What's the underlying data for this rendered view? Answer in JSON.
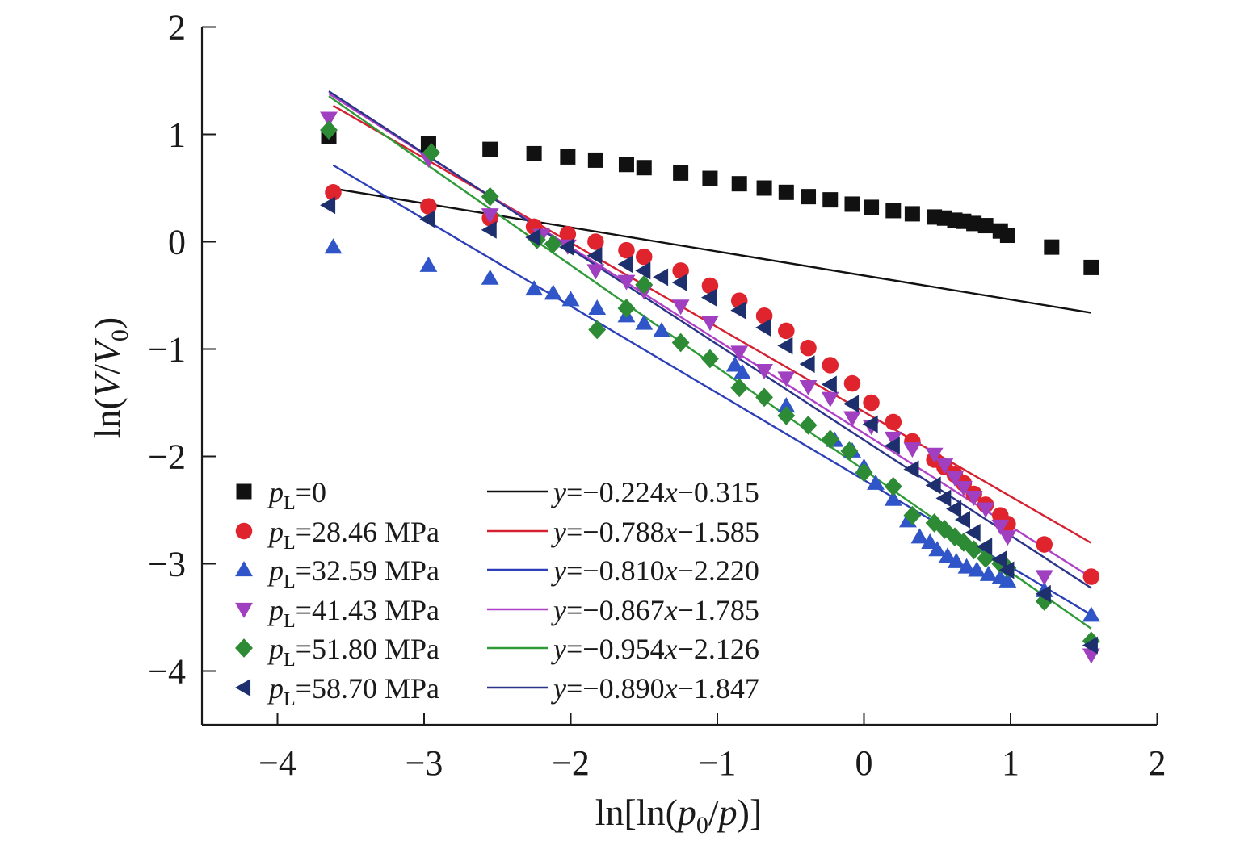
{
  "chart_data": {
    "type": "scatter",
    "title": "",
    "xlabel_parts": [
      "ln[ln(",
      "p",
      "0",
      "/",
      "p",
      ")]"
    ],
    "ylabel_parts": [
      "ln(",
      "V",
      "/",
      "V",
      "0",
      ")"
    ],
    "xlim": [
      -4.5,
      2
    ],
    "ylim": [
      -4.5,
      2
    ],
    "xticks": [
      -4,
      -3,
      -2,
      -1,
      0,
      1,
      2
    ],
    "yticks": [
      2,
      1,
      0,
      -1,
      -2,
      -3,
      -4
    ],
    "grid": false,
    "legend_position": "lower-left",
    "series": [
      {
        "name": "pL=0",
        "label_var": "p",
        "label_sub": "L",
        "label_value": "=0",
        "marker": "square",
        "color": "#111111",
        "fit_label": "y=−0.224x−0.315",
        "fit_color": "#111111",
        "fit_slope": -0.224,
        "fit_intercept": -0.315,
        "points": [
          [
            -3.65,
            0.98
          ],
          [
            -2.97,
            0.91
          ],
          [
            -2.55,
            0.86
          ],
          [
            -2.25,
            0.82
          ],
          [
            -2.02,
            0.79
          ],
          [
            -1.83,
            0.76
          ],
          [
            -1.62,
            0.72
          ],
          [
            -1.5,
            0.69
          ],
          [
            -1.25,
            0.64
          ],
          [
            -1.05,
            0.59
          ],
          [
            -0.85,
            0.54
          ],
          [
            -0.68,
            0.5
          ],
          [
            -0.53,
            0.46
          ],
          [
            -0.38,
            0.42
          ],
          [
            -0.23,
            0.39
          ],
          [
            -0.08,
            0.35
          ],
          [
            0.05,
            0.32
          ],
          [
            0.2,
            0.29
          ],
          [
            0.33,
            0.26
          ],
          [
            0.48,
            0.23
          ],
          [
            0.55,
            0.22
          ],
          [
            0.62,
            0.2
          ],
          [
            0.68,
            0.19
          ],
          [
            0.75,
            0.17
          ],
          [
            0.83,
            0.15
          ],
          [
            0.93,
            0.1
          ],
          [
            0.98,
            0.06
          ],
          [
            1.28,
            -0.05
          ],
          [
            1.55,
            -0.24
          ]
        ]
      },
      {
        "name": "pL=28.46 MPa",
        "label_var": "p",
        "label_sub": "L",
        "label_value": "=28.46 MPa",
        "marker": "circle",
        "color": "#e0242e",
        "fit_label": "y=−0.788x−1.585",
        "fit_color": "#d42030",
        "fit_slope": -0.788,
        "fit_intercept": -1.585,
        "points": [
          [
            -3.62,
            0.46
          ],
          [
            -2.97,
            0.33
          ],
          [
            -2.55,
            0.22
          ],
          [
            -2.25,
            0.14
          ],
          [
            -2.02,
            0.07
          ],
          [
            -1.83,
            0.0
          ],
          [
            -1.62,
            -0.08
          ],
          [
            -1.5,
            -0.14
          ],
          [
            -1.25,
            -0.27
          ],
          [
            -1.05,
            -0.41
          ],
          [
            -0.85,
            -0.55
          ],
          [
            -0.68,
            -0.69
          ],
          [
            -0.53,
            -0.83
          ],
          [
            -0.38,
            -0.99
          ],
          [
            -0.23,
            -1.15
          ],
          [
            -0.08,
            -1.32
          ],
          [
            0.05,
            -1.5
          ],
          [
            0.2,
            -1.68
          ],
          [
            0.33,
            -1.86
          ],
          [
            0.48,
            -2.03
          ],
          [
            0.55,
            -2.1
          ],
          [
            0.62,
            -2.17
          ],
          [
            0.68,
            -2.25
          ],
          [
            0.75,
            -2.35
          ],
          [
            0.83,
            -2.45
          ],
          [
            0.93,
            -2.55
          ],
          [
            0.98,
            -2.63
          ],
          [
            1.23,
            -2.82
          ],
          [
            1.55,
            -3.12
          ]
        ]
      },
      {
        "name": "pL=32.59 MPa",
        "label_var": "p",
        "label_sub": "L",
        "label_value": "=32.59 MPa",
        "marker": "triangle-up",
        "color": "#2f55c8",
        "fit_label": "y=−0.810x−2.220",
        "fit_color": "#2c3fb8",
        "fit_slope": -0.81,
        "fit_intercept": -2.22,
        "points": [
          [
            -3.62,
            -0.05
          ],
          [
            -2.97,
            -0.22
          ],
          [
            -2.55,
            -0.34
          ],
          [
            -2.25,
            -0.44
          ],
          [
            -2.12,
            -0.48
          ],
          [
            -2.0,
            -0.54
          ],
          [
            -1.82,
            -0.62
          ],
          [
            -1.62,
            -0.69
          ],
          [
            -1.5,
            -0.76
          ],
          [
            -1.38,
            -0.83
          ],
          [
            -0.88,
            -1.15
          ],
          [
            -0.83,
            -1.22
          ],
          [
            -0.53,
            -1.53
          ],
          [
            -0.2,
            -1.85
          ],
          [
            -0.08,
            -1.95
          ],
          [
            0.0,
            -2.1
          ],
          [
            0.08,
            -2.25
          ],
          [
            0.2,
            -2.4
          ],
          [
            0.3,
            -2.6
          ],
          [
            0.38,
            -2.75
          ],
          [
            0.45,
            -2.8
          ],
          [
            0.5,
            -2.87
          ],
          [
            0.57,
            -2.93
          ],
          [
            0.63,
            -2.98
          ],
          [
            0.7,
            -3.03
          ],
          [
            0.77,
            -3.06
          ],
          [
            0.85,
            -3.1
          ],
          [
            0.93,
            -3.13
          ],
          [
            0.98,
            -3.16
          ],
          [
            1.23,
            -3.25
          ],
          [
            1.55,
            -3.48
          ]
        ]
      },
      {
        "name": "pL=41.43 MPa",
        "label_var": "p",
        "label_sub": "L",
        "label_value": "=41.43 MPa",
        "marker": "triangle-down",
        "color": "#a040c0",
        "fit_label": "y=−0.867x−1.785",
        "fit_color": "#b040c8",
        "fit_slope": -0.867,
        "fit_intercept": -1.785,
        "points": [
          [
            -3.65,
            1.15
          ],
          [
            -2.97,
            0.77
          ],
          [
            -2.55,
            0.25
          ],
          [
            -2.2,
            0.06
          ],
          [
            -2.02,
            -0.04
          ],
          [
            -1.83,
            -0.27
          ],
          [
            -1.62,
            -0.37
          ],
          [
            -1.5,
            -0.46
          ],
          [
            -1.25,
            -0.6
          ],
          [
            -1.05,
            -0.75
          ],
          [
            -0.85,
            -1.03
          ],
          [
            -0.68,
            -1.2
          ],
          [
            -0.53,
            -1.27
          ],
          [
            -0.38,
            -1.35
          ],
          [
            -0.23,
            -1.46
          ],
          [
            -0.08,
            -1.64
          ],
          [
            0.05,
            -1.72
          ],
          [
            0.2,
            -1.83
          ],
          [
            0.33,
            -1.93
          ],
          [
            0.48,
            -1.98
          ],
          [
            0.55,
            -2.08
          ],
          [
            0.62,
            -2.2
          ],
          [
            0.68,
            -2.29
          ],
          [
            0.75,
            -2.38
          ],
          [
            0.83,
            -2.49
          ],
          [
            0.93,
            -2.65
          ],
          [
            0.98,
            -2.75
          ],
          [
            1.23,
            -3.12
          ],
          [
            1.55,
            -3.85
          ]
        ]
      },
      {
        "name": "pL=51.80 MPa",
        "label_var": "p",
        "label_sub": "L",
        "label_value": "=51.80 MPa",
        "marker": "diamond",
        "color": "#2e8b35",
        "fit_label": "y=−0.954x−2.126",
        "fit_color": "#2e9a38",
        "fit_slope": -0.954,
        "fit_intercept": -2.126,
        "points": [
          [
            -3.65,
            1.04
          ],
          [
            -2.95,
            0.83
          ],
          [
            -2.55,
            0.42
          ],
          [
            -2.23,
            0.02
          ],
          [
            -2.12,
            -0.02
          ],
          [
            -1.82,
            -0.82
          ],
          [
            -1.62,
            -0.62
          ],
          [
            -1.5,
            -0.4
          ],
          [
            -1.25,
            -0.94
          ],
          [
            -1.05,
            -1.09
          ],
          [
            -0.85,
            -1.36
          ],
          [
            -0.68,
            -1.45
          ],
          [
            -0.53,
            -1.62
          ],
          [
            -0.38,
            -1.71
          ],
          [
            -0.23,
            -1.84
          ],
          [
            -0.1,
            -1.95
          ],
          [
            0.0,
            -2.15
          ],
          [
            0.2,
            -2.28
          ],
          [
            0.33,
            -2.55
          ],
          [
            0.48,
            -2.62
          ],
          [
            0.55,
            -2.68
          ],
          [
            0.62,
            -2.75
          ],
          [
            0.68,
            -2.8
          ],
          [
            0.75,
            -2.87
          ],
          [
            0.83,
            -2.95
          ],
          [
            0.93,
            -3.0
          ],
          [
            0.98,
            -3.04
          ],
          [
            1.23,
            -3.35
          ],
          [
            1.55,
            -3.72
          ]
        ]
      },
      {
        "name": "pL=58.70 MPa",
        "label_var": "p",
        "label_sub": "L",
        "label_value": "=58.70 MPa",
        "marker": "triangle-left",
        "color": "#1e2f6e",
        "fit_label": "y=−0.890x−1.847",
        "fit_color": "#2a3488",
        "fit_slope": -0.89,
        "fit_intercept": -1.847,
        "points": [
          [
            -3.65,
            0.34
          ],
          [
            -2.97,
            0.21
          ],
          [
            -2.55,
            0.11
          ],
          [
            -2.25,
            0.04
          ],
          [
            -2.02,
            -0.05
          ],
          [
            -1.83,
            -0.13
          ],
          [
            -1.62,
            -0.21
          ],
          [
            -1.5,
            -0.27
          ],
          [
            -1.38,
            -0.33
          ],
          [
            -1.25,
            -0.38
          ],
          [
            -1.05,
            -0.52
          ],
          [
            -0.85,
            -0.64
          ],
          [
            -0.68,
            -0.8
          ],
          [
            -0.53,
            -0.97
          ],
          [
            -0.38,
            -1.14
          ],
          [
            -0.23,
            -1.33
          ],
          [
            -0.08,
            -1.51
          ],
          [
            0.05,
            -1.7
          ],
          [
            0.2,
            -1.9
          ],
          [
            0.33,
            -2.12
          ],
          [
            0.48,
            -2.27
          ],
          [
            0.55,
            -2.39
          ],
          [
            0.62,
            -2.49
          ],
          [
            0.68,
            -2.59
          ],
          [
            0.75,
            -2.71
          ],
          [
            0.83,
            -2.84
          ],
          [
            0.93,
            -2.96
          ],
          [
            0.98,
            -3.06
          ],
          [
            1.23,
            -3.28
          ],
          [
            1.55,
            -3.76
          ]
        ]
      }
    ]
  }
}
